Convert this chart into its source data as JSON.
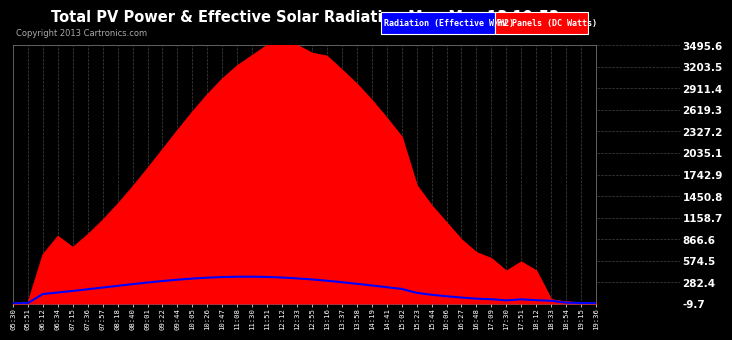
{
  "title": "Total PV Power & Effective Solar Radiation Mon May 13 19:53",
  "copyright": "Copyright 2013 Cartronics.com",
  "legend_labels": [
    "Radiation (Effective W/m2)",
    "PV Panels (DC Watts)"
  ],
  "legend_colors": [
    "#0000ff",
    "#ff0000"
  ],
  "background_color": "#000000",
  "plot_bg_color": "#000000",
  "text_color": "#ffffff",
  "grid_color": "#555555",
  "title_fontsize": 11,
  "yticks": [
    -9.7,
    282.4,
    574.5,
    866.6,
    1158.7,
    1450.8,
    1742.9,
    2035.1,
    2327.2,
    2619.3,
    2911.4,
    3203.5,
    3495.6
  ],
  "ylim": [
    -9.7,
    3495.6
  ],
  "xtick_labels": [
    "05:30",
    "05:51",
    "06:12",
    "06:34",
    "07:15",
    "07:36",
    "07:57",
    "08:18",
    "08:40",
    "09:01",
    "09:22",
    "09:44",
    "10:05",
    "10:26",
    "10:47",
    "11:08",
    "11:30",
    "11:51",
    "12:12",
    "12:33",
    "12:55",
    "13:16",
    "13:37",
    "13:58",
    "14:19",
    "14:41",
    "15:02",
    "15:23",
    "15:44",
    "16:06",
    "16:27",
    "16:48",
    "17:09",
    "17:30",
    "17:51",
    "18:12",
    "18:33",
    "18:54",
    "19:15",
    "19:36"
  ]
}
